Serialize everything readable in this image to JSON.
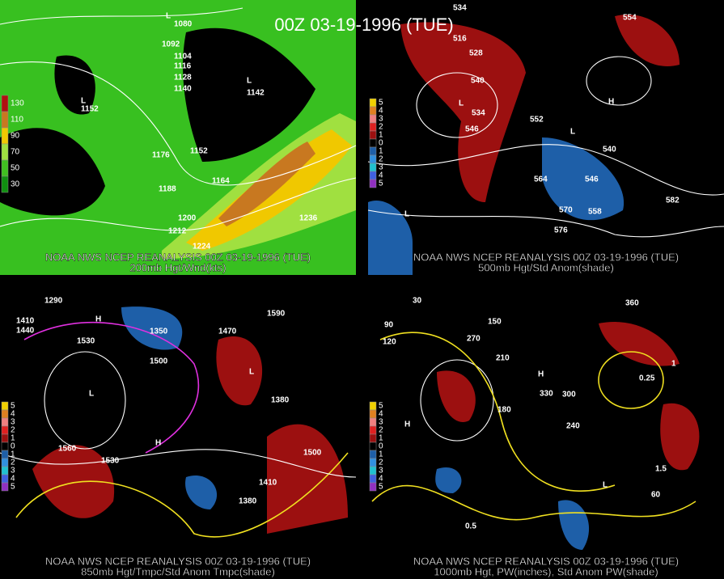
{
  "title": "00Z 03-19-1996 (TUE)",
  "panels": [
    {
      "caption": "NOAA NWS NCEP REANALYSIS 00Z 03-19-1996 (TUE)",
      "subtitle": "200mb Hgt/Wnd(kts)",
      "legend": [
        130,
        110,
        90,
        70,
        50,
        30
      ],
      "labels": [
        "L",
        1080,
        1092,
        1104,
        1116,
        1128,
        1140,
        "L",
        1142,
        "L",
        1152,
        1152,
        1164,
        1176,
        1188,
        1200,
        1212,
        1224,
        1236
      ]
    },
    {
      "caption": "NOAA NWS NCEP REANALYSIS 00Z 03-19-1996 (TUE)",
      "subtitle": "500mb Hgt/Std Anom(shade)",
      "legend": [
        5,
        4,
        3,
        2,
        1,
        0,
        1,
        2,
        3,
        4,
        5
      ],
      "labels": [
        534,
        516,
        528,
        540,
        552,
        564,
        546,
        558,
        570,
        576,
        582,
        "L",
        "H",
        "L",
        "L",
        534,
        540,
        546,
        554
      ]
    },
    {
      "caption": "NOAA NWS NCEP REANALYSIS 00Z 03-19-1996 (TUE)",
      "subtitle": "850mb Hgt/Tmpc/Std Anom Tmpc(shade)",
      "legend": [
        5,
        4,
        3,
        2,
        1,
        0,
        1,
        2,
        3,
        4,
        5
      ],
      "labels": [
        1290,
        1410,
        1440,
        1530,
        1500,
        1470,
        1560,
        1350,
        1380,
        1590,
        "H",
        "L",
        "L",
        "H",
        1530,
        1500,
        1410,
        1380
      ]
    },
    {
      "caption": "NOAA NWS NCEP REANALYSIS 00Z 03-19-1996 (TUE)",
      "subtitle": "1000mb Hgt, PW(inches), Std Anom PW(shade)",
      "legend": [
        5,
        4,
        3,
        2,
        1,
        0,
        1,
        2,
        3,
        4,
        5
      ],
      "labels": [
        30,
        90,
        120,
        150,
        210,
        240,
        270,
        300,
        330,
        360,
        0.5,
        1.5,
        0.25,
        1,
        "H",
        "L",
        "H",
        60,
        180
      ]
    }
  ]
}
